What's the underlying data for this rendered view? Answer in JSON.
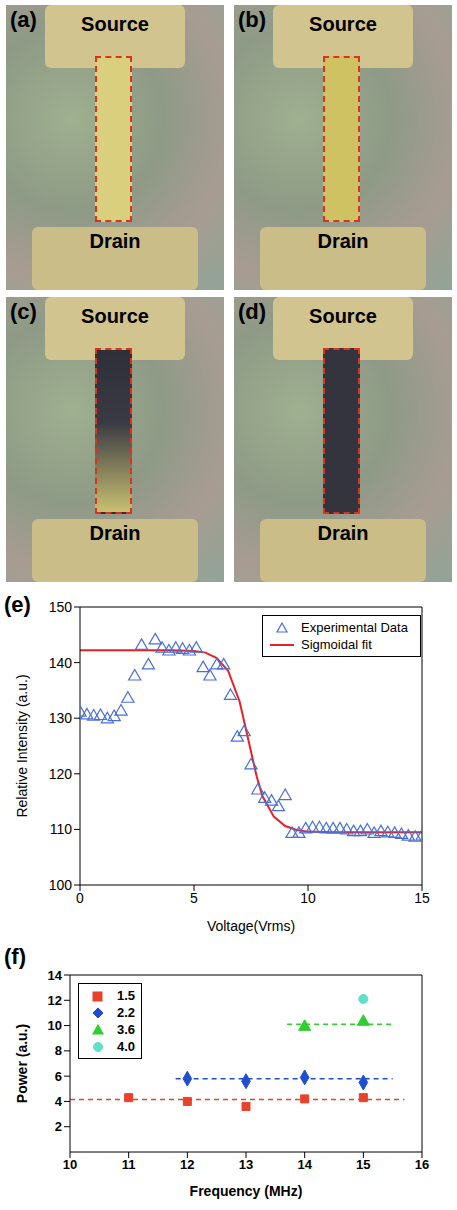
{
  "images": [
    {
      "label": "(a)",
      "top_text": "Source",
      "bottom_text": "Drain"
    },
    {
      "label": "(b)",
      "top_text": "Source",
      "bottom_text": "Drain"
    },
    {
      "label": "(c)",
      "top_text": "Source",
      "bottom_text": "Drain"
    },
    {
      "label": "(d)",
      "top_text": "Source",
      "bottom_text": "Drain"
    }
  ],
  "chart_data": [
    {
      "label": "(e)",
      "type": "scatter",
      "x_label": "Voltage(Vrms)",
      "y_label": "Relative Intensity (a.u.)",
      "xlim": [
        0,
        15
      ],
      "xticks": [
        0,
        5,
        10,
        15
      ],
      "ylim": [
        100,
        150
      ],
      "yticks": [
        100,
        110,
        120,
        130,
        140,
        150
      ],
      "legend": "upper right",
      "series": [
        {
          "name": "Experimental Data",
          "type": "scatter",
          "marker": "open_triangle",
          "color": "#4a6fd6",
          "x": [
            0,
            0.3,
            0.6,
            0.9,
            1.2,
            1.5,
            1.8,
            2.1,
            2.4,
            2.7,
            3.0,
            3.3,
            3.6,
            3.9,
            4.2,
            4.5,
            4.8,
            5.1,
            5.4,
            5.7,
            6.0,
            6.3,
            6.6,
            6.9,
            7.2,
            7.5,
            7.8,
            8.1,
            8.4,
            8.7,
            9.0,
            9.3,
            9.6,
            9.9,
            10.2,
            10.5,
            10.8,
            11.1,
            11.4,
            11.7,
            12.0,
            12.3,
            12.6,
            12.9,
            13.2,
            13.5,
            13.8,
            14.1,
            14.4,
            14.7,
            15.0
          ],
          "values": [
            131,
            130.5,
            130.3,
            130.4,
            129.8,
            130.2,
            131.2,
            133.5,
            137.5,
            143,
            139.5,
            144,
            142.5,
            142,
            142.5,
            142.3,
            142,
            142.5,
            139,
            137.5,
            139.5,
            139.5,
            134,
            126.5,
            127.5,
            121.5,
            117,
            115.5,
            115,
            114,
            116,
            109.2,
            109.2,
            110,
            110.2,
            110.2,
            110,
            110,
            110,
            109.8,
            109.5,
            109.5,
            109.8,
            109.2,
            109.5,
            109.3,
            109.2,
            109,
            108.7,
            108.5,
            108.7
          ]
        },
        {
          "name": "Sigmoidal fit",
          "type": "line",
          "color": "#e8202a",
          "x": [
            0,
            1,
            2,
            3,
            4,
            5,
            5.5,
            6,
            6.5,
            7,
            7.25,
            7.5,
            7.75,
            8,
            8.5,
            9,
            9.5,
            10,
            11,
            12,
            13,
            14,
            15
          ],
          "values": [
            142.2,
            142.2,
            142.2,
            142.2,
            142.2,
            142.1,
            141.8,
            140.8,
            138.5,
            133,
            128.5,
            124,
            119.5,
            116,
            112.3,
            110.6,
            109.9,
            109.6,
            109.5,
            109.5,
            109.5,
            109.5,
            109.5
          ]
        }
      ]
    },
    {
      "label": "(f)",
      "type": "scatter",
      "x_label": "Frequency (MHz)",
      "y_label": "Power (a.u.)",
      "xlim": [
        10,
        16
      ],
      "xticks": [
        10,
        11,
        12,
        13,
        14,
        15,
        16
      ],
      "ylim": [
        0,
        14
      ],
      "yticks": [
        2,
        4,
        6,
        8,
        10,
        12,
        14
      ],
      "legend": "upper left",
      "series": [
        {
          "name": "1.5",
          "type": "scatter",
          "marker": "square",
          "color": "#e8432a",
          "x": [
            11,
            12,
            13,
            14,
            15
          ],
          "values": [
            4.3,
            4.0,
            3.6,
            4.2,
            4.3
          ],
          "mean_x": [
            10,
            15.7
          ],
          "mean_value": 4.15
        },
        {
          "name": "2.2",
          "type": "scatter",
          "marker": "diamond",
          "color": "#1f4fd0",
          "x": [
            12,
            13,
            14,
            15
          ],
          "values": [
            5.8,
            5.6,
            5.9,
            5.5
          ],
          "mean_x": [
            11.8,
            15.5
          ],
          "mean_value": 5.8
        },
        {
          "name": "3.6",
          "type": "scatter",
          "marker": "triangle",
          "color": "#2fcf2f",
          "x": [
            14,
            15
          ],
          "values": [
            9.9,
            10.3
          ],
          "mean_x": [
            13.7,
            15.5
          ],
          "mean_value": 10.1
        },
        {
          "name": "4.0",
          "type": "scatter",
          "marker": "circle",
          "color": "#5fe0c8",
          "x": [
            15
          ],
          "values": [
            12.1
          ]
        }
      ]
    }
  ]
}
